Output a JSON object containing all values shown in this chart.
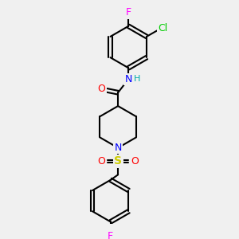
{
  "background_color": "#f0f0f0",
  "atom_colors": {
    "C": "#000000",
    "N": "#0000ff",
    "O": "#ff0000",
    "S": "#cccc00",
    "F_top": "#ff00ff",
    "F_bottom": "#ff00ff",
    "Cl": "#00cc00",
    "H": "#00aaaa"
  },
  "figsize": [
    3.0,
    3.0
  ],
  "dpi": 100
}
